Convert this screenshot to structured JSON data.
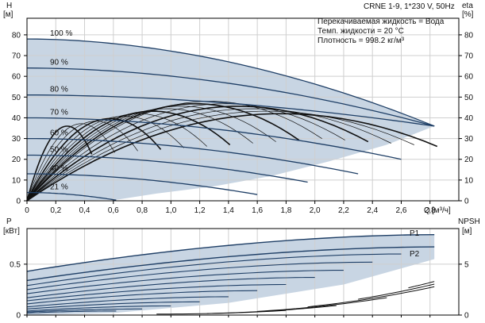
{
  "chart_data": [
    {
      "type": "line",
      "panel": "head-efficiency",
      "title": "CRNE 1-9, 1*230 V, 50Hz",
      "info_lines": [
        "Перекачиваемая жидкость = Вода",
        "Темп. жидкости = 20 °C",
        "Плотность = 998.2 кг/м³"
      ],
      "xlabel": "Q",
      "xunit": "[м³/ч]",
      "ylabel": "H",
      "yunit": "[м]",
      "y2label": "eta",
      "y2unit": "[%]",
      "xlim": [
        0,
        3.0
      ],
      "ylim": [
        0,
        88
      ],
      "xticks": [
        "0",
        "0,2",
        "0,4",
        "0,6",
        "0,8",
        "1,0",
        "1,2",
        "1,4",
        "1,6",
        "1,8",
        "2,0",
        "2,2",
        "2,4",
        "2,6",
        "2,8"
      ],
      "yticks": [
        "0",
        "10",
        "20",
        "30",
        "40",
        "50",
        "60",
        "70",
        "80"
      ],
      "y2ticks": [
        "0",
        "10",
        "20",
        "30",
        "40",
        "50",
        "60",
        "70",
        "80"
      ],
      "grid": true,
      "series": [
        {
          "name": "100 %",
          "q_max": 2.83,
          "h0": 78,
          "h_end": 36
        },
        {
          "name": "90 %",
          "q_max": 2.83,
          "h0": 64,
          "h_end": 36
        },
        {
          "name": "80 %",
          "q_max": 2.83,
          "h0": 51,
          "h_end": 36
        },
        {
          "name": "70 %",
          "q_max": 2.6,
          "h0": 40,
          "h_end": 20
        },
        {
          "name": "60 %",
          "q_max": 2.3,
          "h0": 30,
          "h_end": 13
        },
        {
          "name": "50 %",
          "q_max": 1.95,
          "h0": 22,
          "h_end": 9
        },
        {
          "name": "40 %",
          "q_max": 1.6,
          "h0": 13,
          "h_end": 3
        },
        {
          "name": "21 %",
          "q_max": 0.62,
          "h0": 4,
          "h_end": 0.3
        }
      ]
    },
    {
      "type": "line",
      "panel": "power-npsh",
      "ylabel": "P",
      "yunit": "[кВт]",
      "y2label": "NPSH",
      "y2unit": "[м]",
      "xlim": [
        0,
        3.0
      ],
      "ylim": [
        0,
        0.85
      ],
      "yticks": [
        "0",
        "0.5"
      ],
      "y2ticks": [
        "0",
        "5"
      ],
      "grid": true,
      "series": [
        {
          "name": "P1",
          "p_start": 0.43,
          "p_end": 0.79
        },
        {
          "name": "P2",
          "p_start": 0.34,
          "p_end": 0.67
        }
      ]
    }
  ],
  "colors": {
    "envelope": "#c8d5e3",
    "curve": "#1f3f66",
    "grid": "#cfcfcf",
    "axis": "#000000"
  }
}
